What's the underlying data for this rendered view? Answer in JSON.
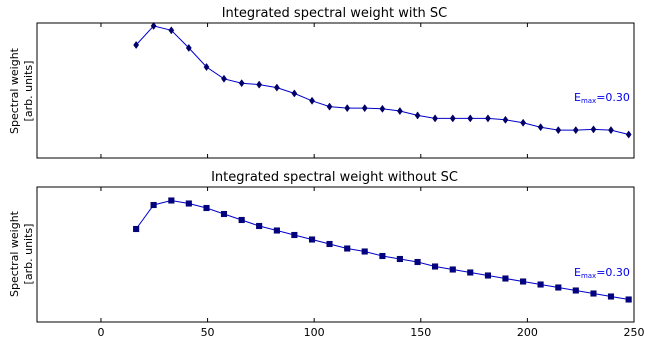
{
  "chart_data": [
    {
      "type": "line",
      "title": "Integrated spectral weight with SC",
      "ylabel_line1": "Spectral weight",
      "ylabel_line2": "[arb. units]",
      "xlim": [
        -30,
        250
      ],
      "ylim": [
        0.08,
        1.0
      ],
      "marker": "diamond",
      "color": "#0000cc",
      "annotation": {
        "base": "E",
        "sub": "max",
        "rest": "=0.30"
      },
      "series": [
        {
          "x": [
            16.5,
            24.7,
            33.0,
            41.2,
            49.5,
            57.7,
            66.0,
            74.2,
            82.5,
            90.7,
            99.0,
            107.2,
            115.5,
            123.7,
            132.0,
            140.2,
            148.5,
            156.7,
            165.0,
            173.2,
            181.5,
            189.7,
            198.0,
            206.2,
            214.5,
            222.7,
            231.0,
            239.2,
            247.5
          ],
          "y": [
            0.85,
            0.98,
            0.95,
            0.83,
            0.7,
            0.62,
            0.59,
            0.58,
            0.56,
            0.52,
            0.47,
            0.43,
            0.42,
            0.42,
            0.415,
            0.4,
            0.37,
            0.35,
            0.35,
            0.35,
            0.35,
            0.34,
            0.32,
            0.29,
            0.27,
            0.27,
            0.275,
            0.27,
            0.24
          ]
        }
      ]
    },
    {
      "type": "line",
      "title": "Integrated spectral weight without SC",
      "ylabel_line1": "Spectral weight",
      "ylabel_line2": "[arb. units]",
      "xlim": [
        -30,
        250
      ],
      "ylim": [
        0.0,
        0.9
      ],
      "marker": "square",
      "color": "#000080",
      "annotation": {
        "base": "E",
        "sub": "max",
        "rest": "=0.30"
      },
      "xticks": [
        "0",
        "50",
        "100",
        "150",
        "200",
        "250"
      ],
      "xtick_values": [
        0,
        50,
        100,
        150,
        200,
        250
      ],
      "series": [
        {
          "x": [
            16.5,
            24.7,
            33.0,
            41.2,
            49.5,
            57.7,
            66.0,
            74.2,
            82.5,
            90.7,
            99.0,
            107.2,
            115.5,
            123.7,
            132.0,
            140.2,
            148.5,
            156.7,
            165.0,
            173.2,
            181.5,
            189.7,
            198.0,
            206.2,
            214.5,
            222.7,
            231.0,
            239.2,
            247.5
          ],
          "y": [
            0.62,
            0.78,
            0.81,
            0.79,
            0.76,
            0.72,
            0.68,
            0.64,
            0.61,
            0.58,
            0.55,
            0.52,
            0.49,
            0.47,
            0.44,
            0.42,
            0.4,
            0.37,
            0.35,
            0.33,
            0.31,
            0.29,
            0.27,
            0.25,
            0.23,
            0.21,
            0.19,
            0.17,
            0.15
          ]
        }
      ]
    }
  ]
}
